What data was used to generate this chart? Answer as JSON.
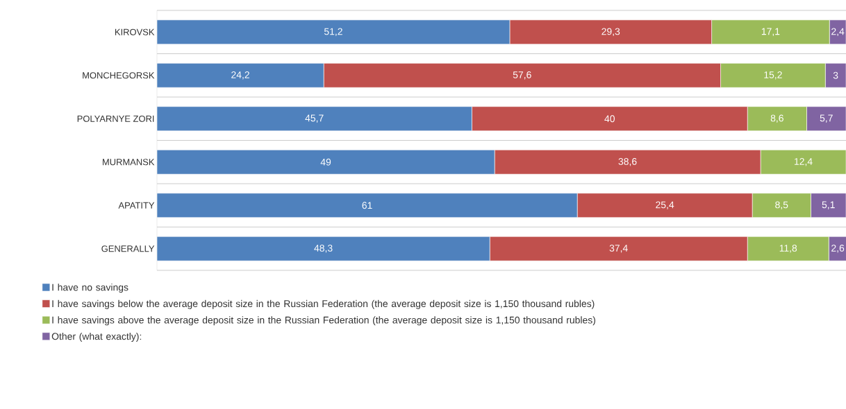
{
  "chart_data": {
    "type": "bar",
    "orientation": "horizontal",
    "stacked": true,
    "categories": [
      "KIROVSK",
      "MONCHEGORSK",
      "POLYARNYE ZORI",
      "MURMANSK",
      "APATITY",
      "GENERALLY"
    ],
    "xlim": [
      0,
      100
    ],
    "tick_labels": "y",
    "grid": "y",
    "legend": "bottom",
    "series": [
      {
        "name": "I have no savings",
        "color": "#4f81bd",
        "values": [
          51.2,
          24.2,
          45.7,
          49,
          61,
          48.3
        ],
        "value_labels": [
          "51,2",
          "24,2",
          "45,7",
          "49",
          "61",
          "48,3"
        ]
      },
      {
        "name": "I have savings below the average deposit size in the Russian Federation (the average deposit size is 1,150 thousand rubles)",
        "color": "#c0504d",
        "values": [
          29.3,
          57.6,
          40,
          38.6,
          25.4,
          37.4
        ],
        "value_labels": [
          "29,3",
          "57,6",
          "40",
          "38,6",
          "25,4",
          "37,4"
        ]
      },
      {
        "name": "I have savings above the average deposit size in the Russian Federation (the average deposit size is 1,150 thousand rubles)",
        "color": "#9bbb59",
        "values": [
          17.1,
          15.2,
          8.6,
          12.4,
          8.5,
          11.8
        ],
        "value_labels": [
          "17,1",
          "15,2",
          "8,6",
          "12,4",
          "8,5",
          "11,8"
        ]
      },
      {
        "name": "Other (what exactly):",
        "color": "#8064a2",
        "values": [
          2.4,
          3,
          5.7,
          null,
          5.1,
          2.6
        ],
        "value_labels": [
          "2,4",
          "3",
          "5,7",
          null,
          "5,1",
          "2,6"
        ]
      }
    ]
  }
}
